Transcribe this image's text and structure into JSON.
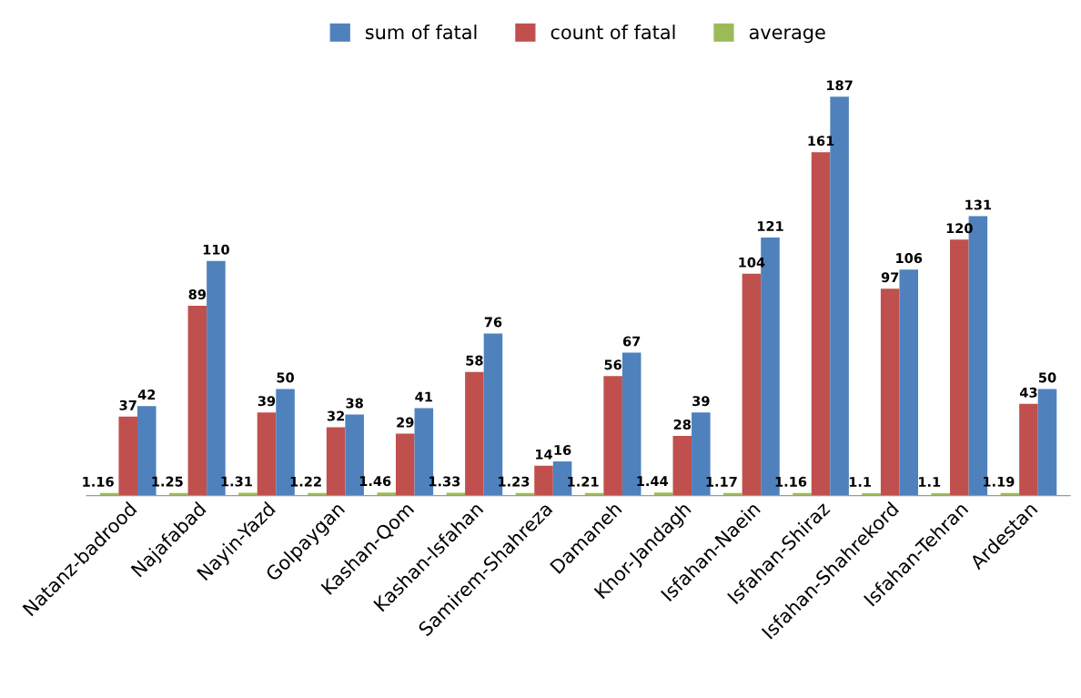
{
  "chart_data": {
    "type": "bar",
    "categories": [
      "Natanz-badrood",
      "Najafabad",
      "Nayin-Yazd",
      "Golpaygan",
      "Kashan-Qom",
      "Kashan-Isfahan",
      "Samirem-Shahreza",
      "Damaneh",
      "Khor-Jandagh",
      "Isfahan-Naein",
      "Isfahan-Shiraz",
      "Isfahan-Shahrekord",
      "Isfahan-Tehran",
      "Ardestan"
    ],
    "series": [
      {
        "name": "average",
        "color": "#9bbb59",
        "values": [
          1.16,
          1.25,
          1.31,
          1.22,
          1.46,
          1.33,
          1.23,
          1.21,
          1.44,
          1.17,
          1.16,
          1.1,
          1.1,
          1.19
        ]
      },
      {
        "name": "count of fatal",
        "color": "#c0504d",
        "values": [
          37,
          89,
          39,
          32,
          29,
          58,
          14,
          56,
          28,
          104,
          161,
          97,
          120,
          43
        ]
      },
      {
        "name": "sum of fatal",
        "color": "#4f81bd",
        "values": [
          42,
          110,
          50,
          38,
          41,
          76,
          16,
          67,
          39,
          121,
          187,
          106,
          131,
          50
        ]
      }
    ],
    "data_labels": true,
    "legend": "top",
    "grid": false
  }
}
